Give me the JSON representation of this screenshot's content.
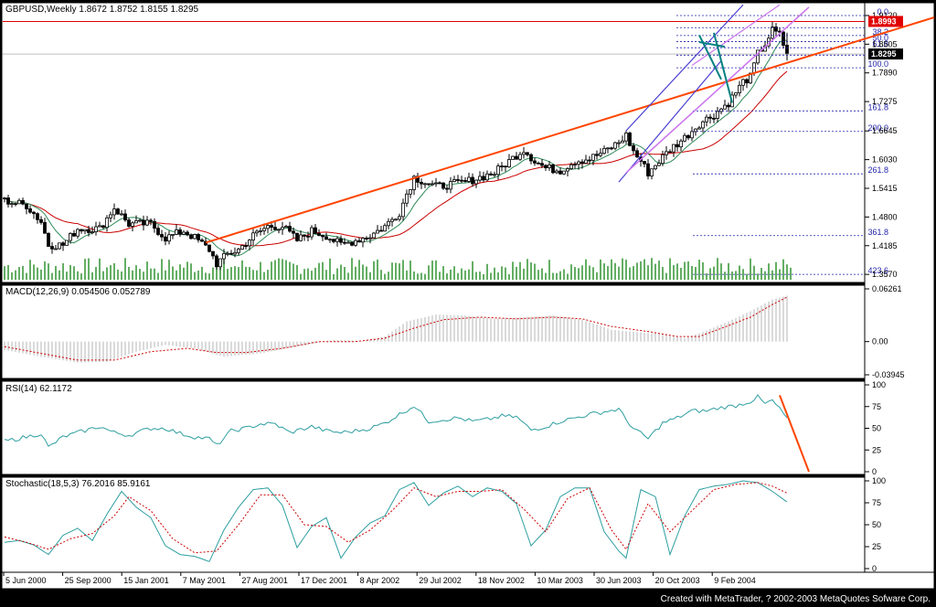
{
  "window": {
    "symbol_header": "GBPUSD,Weekly  1.8672 1.8752 1.8155 1.8295",
    "credit": "Created with MetaTrader, ? 2002-2003 MetaQuotes Sofware Corp."
  },
  "colors": {
    "background": "#ffffff",
    "frame": "#000000",
    "candle": "#000000",
    "ma_fast": "#2e8b57",
    "ma_slow": "#cc0000",
    "volume": "#228b22",
    "trend_orange": "#ff4500",
    "channel_blue": "#4b3fd1",
    "channel_violet": "#cc77ee",
    "fork_teal": "#008080",
    "fib": "#2222aa",
    "macd_hist": "#c0c0c0",
    "macd_signal": "#cc0000",
    "rsi": "#2e9ea0",
    "stoch_main": "#2e9ea0",
    "stoch_signal": "#cc0000",
    "price_tag_red": "#e00000",
    "price_tag_black": "#000000"
  },
  "chart_data": {
    "type": "candlestick",
    "title": "GBPUSD,Weekly",
    "symbol": "GBPUSD",
    "timeframe": "Weekly",
    "last_bar": {
      "open": 1.8672,
      "high": 1.8752,
      "low": 1.8155,
      "close": 1.8295
    },
    "date_labels": [
      "5 Jun 2000",
      "25 Sep 2000",
      "15 Jan 2001",
      "7 May 2001",
      "27 Aug 2001",
      "17 Dec 2001",
      "8 Apr 2002",
      "29 Jul 2002",
      "18 Nov 2002",
      "10 Mar 2003",
      "30 Jun 2003",
      "20 Oct 2003",
      "9 Feb 2004"
    ],
    "price_ticks": [
      "1.9120",
      "1.8505",
      "1.7890",
      "1.7275",
      "1.6645",
      "1.6030",
      "1.5415",
      "1.4800",
      "1.4185",
      "1.3570"
    ],
    "ylim": [
      1.3455,
      1.9335
    ],
    "horizontal_line_price": "1.8993",
    "current_price_tag": "1.8295",
    "price_path": [
      [
        0,
        1.515
      ],
      [
        6,
        1.505
      ],
      [
        10,
        1.47
      ],
      [
        12,
        1.42
      ],
      [
        16,
        1.42
      ],
      [
        20,
        1.455
      ],
      [
        26,
        1.455
      ],
      [
        30,
        1.5
      ],
      [
        34,
        1.465
      ],
      [
        40,
        1.465
      ],
      [
        44,
        1.435
      ],
      [
        49,
        1.45
      ],
      [
        52,
        1.435
      ],
      [
        56,
        1.41
      ],
      [
        58,
        1.38
      ],
      [
        61,
        1.4
      ],
      [
        64,
        1.41
      ],
      [
        68,
        1.44
      ],
      [
        72,
        1.46
      ],
      [
        76,
        1.46
      ],
      [
        80,
        1.43
      ],
      [
        84,
        1.45
      ],
      [
        88,
        1.44
      ],
      [
        92,
        1.42
      ],
      [
        96,
        1.43
      ],
      [
        100,
        1.44
      ],
      [
        104,
        1.46
      ],
      [
        108,
        1.49
      ],
      [
        110,
        1.53
      ],
      [
        112,
        1.565
      ],
      [
        115,
        1.555
      ],
      [
        118,
        1.545
      ],
      [
        122,
        1.55
      ],
      [
        126,
        1.555
      ],
      [
        130,
        1.565
      ],
      [
        134,
        1.575
      ],
      [
        138,
        1.6
      ],
      [
        142,
        1.625
      ],
      [
        145,
        1.6
      ],
      [
        148,
        1.585
      ],
      [
        152,
        1.58
      ],
      [
        156,
        1.6
      ],
      [
        160,
        1.605
      ],
      [
        164,
        1.62
      ],
      [
        168,
        1.64
      ],
      [
        170,
        1.655
      ],
      [
        172,
        1.62
      ],
      [
        174,
        1.6
      ],
      [
        176,
        1.575
      ],
      [
        179,
        1.6
      ],
      [
        182,
        1.625
      ],
      [
        186,
        1.65
      ],
      [
        190,
        1.68
      ],
      [
        194,
        1.7
      ],
      [
        198,
        1.725
      ],
      [
        202,
        1.77
      ],
      [
        204,
        1.78
      ],
      [
        206,
        1.83
      ],
      [
        208,
        1.8505
      ],
      [
        210,
        1.88
      ],
      [
        212,
        1.87
      ],
      [
        214,
        1.8295
      ]
    ],
    "fibonacci": {
      "levels": [
        {
          "label": "0.0",
          "price": 1.912
        },
        {
          "label": "23.6",
          "price": 1.886
        },
        {
          "label": "38.2",
          "price": 1.869
        },
        {
          "label": "50.0",
          "price": 1.856
        },
        {
          "label": "61.8",
          "price": 1.843
        },
        {
          "label": "76.4",
          "price": 1.827
        },
        {
          "label": "100.0",
          "price": 1.8
        },
        {
          "label": "161.8",
          "price": 1.7075
        },
        {
          "label": "200.0",
          "price": 1.6635
        },
        {
          "label": "261.8",
          "price": 1.5725
        },
        {
          "label": "361.8",
          "price": 1.44
        },
        {
          "label": "423.6",
          "price": 1.357
        }
      ]
    },
    "indicators": [
      {
        "name": "MACD(12,26,9)",
        "header": "MACD(12,26,9)  0.054506  0.052789",
        "values": [
          0.054506,
          0.052789
        ],
        "ticks": [
          "0.06261",
          "0.00",
          "-0.03945"
        ],
        "ylim": [
          -0.03945,
          0.06261
        ],
        "histogram_path": [
          [
            0,
            -0.01
          ],
          [
            10,
            -0.018
          ],
          [
            20,
            -0.025
          ],
          [
            28,
            -0.024
          ],
          [
            36,
            -0.012
          ],
          [
            44,
            -0.004
          ],
          [
            52,
            -0.008
          ],
          [
            60,
            -0.018
          ],
          [
            70,
            -0.014
          ],
          [
            80,
            -0.006
          ],
          [
            90,
            0.002
          ],
          [
            98,
            0.001
          ],
          [
            104,
            0.006
          ],
          [
            110,
            0.024
          ],
          [
            118,
            0.032
          ],
          [
            126,
            0.031
          ],
          [
            134,
            0.027
          ],
          [
            142,
            0.029
          ],
          [
            150,
            0.031
          ],
          [
            158,
            0.026
          ],
          [
            166,
            0.014
          ],
          [
            174,
            0.011
          ],
          [
            180,
            0.009
          ],
          [
            186,
            0.004
          ],
          [
            192,
            0.013
          ],
          [
            198,
            0.024
          ],
          [
            204,
            0.036
          ],
          [
            210,
            0.05
          ],
          [
            214,
            0.0545
          ]
        ],
        "signal_path": [
          [
            0,
            -0.006
          ],
          [
            10,
            -0.014
          ],
          [
            20,
            -0.022
          ],
          [
            30,
            -0.022
          ],
          [
            40,
            -0.012
          ],
          [
            50,
            -0.008
          ],
          [
            58,
            -0.013
          ],
          [
            66,
            -0.013
          ],
          [
            76,
            -0.008
          ],
          [
            86,
            0.0
          ],
          [
            96,
            0.0
          ],
          [
            104,
            0.004
          ],
          [
            112,
            0.016
          ],
          [
            120,
            0.026
          ],
          [
            130,
            0.029
          ],
          [
            140,
            0.027
          ],
          [
            150,
            0.029
          ],
          [
            158,
            0.027
          ],
          [
            166,
            0.018
          ],
          [
            176,
            0.012
          ],
          [
            184,
            0.006
          ],
          [
            190,
            0.006
          ],
          [
            198,
            0.019
          ],
          [
            204,
            0.029
          ],
          [
            210,
            0.044
          ],
          [
            214,
            0.0528
          ]
        ]
      },
      {
        "name": "RSI(14)",
        "header": "RSI(14)  62.1172",
        "values": [
          62.1172
        ],
        "ticks": [
          "100",
          "75",
          "50",
          "25",
          "0"
        ],
        "ylim": [
          0,
          100
        ],
        "path": [
          [
            0,
            35
          ],
          [
            6,
            40
          ],
          [
            10,
            44
          ],
          [
            12,
            28
          ],
          [
            16,
            40
          ],
          [
            20,
            45
          ],
          [
            26,
            52
          ],
          [
            30,
            45
          ],
          [
            34,
            42
          ],
          [
            40,
            50
          ],
          [
            44,
            50
          ],
          [
            48,
            44
          ],
          [
            52,
            40
          ],
          [
            56,
            38
          ],
          [
            58,
            30
          ],
          [
            62,
            47
          ],
          [
            66,
            50
          ],
          [
            70,
            55
          ],
          [
            74,
            55
          ],
          [
            78,
            45
          ],
          [
            84,
            52
          ],
          [
            88,
            47
          ],
          [
            92,
            45
          ],
          [
            96,
            47
          ],
          [
            100,
            50
          ],
          [
            104,
            56
          ],
          [
            108,
            66
          ],
          [
            112,
            76
          ],
          [
            116,
            58
          ],
          [
            120,
            60
          ],
          [
            124,
            62
          ],
          [
            128,
            58
          ],
          [
            132,
            60
          ],
          [
            136,
            64
          ],
          [
            140,
            63
          ],
          [
            144,
            48
          ],
          [
            148,
            52
          ],
          [
            152,
            58
          ],
          [
            156,
            62
          ],
          [
            160,
            66
          ],
          [
            164,
            69
          ],
          [
            168,
            72
          ],
          [
            170,
            60
          ],
          [
            172,
            50
          ],
          [
            176,
            38
          ],
          [
            180,
            56
          ],
          [
            184,
            62
          ],
          [
            188,
            70
          ],
          [
            192,
            70
          ],
          [
            196,
            74
          ],
          [
            200,
            76
          ],
          [
            204,
            81
          ],
          [
            206,
            86
          ],
          [
            208,
            78
          ],
          [
            210,
            82
          ],
          [
            212,
            72
          ],
          [
            214,
            62
          ]
        ],
        "annotation_line": {
          "from": [
            212,
            88
          ],
          "to": [
            220,
            0
          ]
        }
      },
      {
        "name": "Stochastic(18,5,3)",
        "header": "Stochastic(18,5,3)  76.2016  85.9161",
        "values": [
          76.2016,
          85.9161
        ],
        "ticks": [
          "100",
          "75",
          "50",
          "25",
          "0"
        ],
        "ylim": [
          0,
          100
        ],
        "main_path": [
          [
            0,
            30
          ],
          [
            4,
            32
          ],
          [
            8,
            27
          ],
          [
            12,
            16
          ],
          [
            16,
            38
          ],
          [
            20,
            46
          ],
          [
            24,
            32
          ],
          [
            28,
            62
          ],
          [
            32,
            88
          ],
          [
            36,
            70
          ],
          [
            40,
            58
          ],
          [
            44,
            26
          ],
          [
            48,
            16
          ],
          [
            52,
            14
          ],
          [
            56,
            8
          ],
          [
            60,
            44
          ],
          [
            64,
            70
          ],
          [
            68,
            90
          ],
          [
            72,
            92
          ],
          [
            76,
            72
          ],
          [
            80,
            24
          ],
          [
            84,
            48
          ],
          [
            88,
            58
          ],
          [
            92,
            12
          ],
          [
            96,
            36
          ],
          [
            100,
            52
          ],
          [
            104,
            60
          ],
          [
            108,
            90
          ],
          [
            112,
            98
          ],
          [
            116,
            72
          ],
          [
            120,
            86
          ],
          [
            124,
            94
          ],
          [
            128,
            82
          ],
          [
            132,
            92
          ],
          [
            136,
            88
          ],
          [
            140,
            74
          ],
          [
            144,
            26
          ],
          [
            148,
            44
          ],
          [
            152,
            82
          ],
          [
            156,
            92
          ],
          [
            160,
            92
          ],
          [
            164,
            42
          ],
          [
            168,
            20
          ],
          [
            170,
            12
          ],
          [
            174,
            90
          ],
          [
            178,
            82
          ],
          [
            182,
            16
          ],
          [
            186,
            60
          ],
          [
            190,
            90
          ],
          [
            194,
            94
          ],
          [
            198,
            96
          ],
          [
            202,
            100
          ],
          [
            206,
            98
          ],
          [
            210,
            88
          ],
          [
            214,
            76
          ]
        ],
        "signal_path": [
          [
            0,
            36
          ],
          [
            6,
            30
          ],
          [
            12,
            22
          ],
          [
            18,
            34
          ],
          [
            24,
            40
          ],
          [
            30,
            60
          ],
          [
            34,
            82
          ],
          [
            40,
            66
          ],
          [
            46,
            34
          ],
          [
            52,
            18
          ],
          [
            58,
            20
          ],
          [
            64,
            50
          ],
          [
            70,
            84
          ],
          [
            76,
            84
          ],
          [
            82,
            50
          ],
          [
            88,
            48
          ],
          [
            94,
            30
          ],
          [
            100,
            44
          ],
          [
            106,
            66
          ],
          [
            112,
            92
          ],
          [
            118,
            82
          ],
          [
            124,
            88
          ],
          [
            130,
            88
          ],
          [
            136,
            90
          ],
          [
            142,
            68
          ],
          [
            148,
            42
          ],
          [
            154,
            80
          ],
          [
            160,
            92
          ],
          [
            166,
            44
          ],
          [
            170,
            22
          ],
          [
            176,
            74
          ],
          [
            182,
            42
          ],
          [
            188,
            66
          ],
          [
            194,
            90
          ],
          [
            200,
            96
          ],
          [
            206,
            98
          ],
          [
            210,
            94
          ],
          [
            214,
            86
          ]
        ]
      }
    ]
  }
}
